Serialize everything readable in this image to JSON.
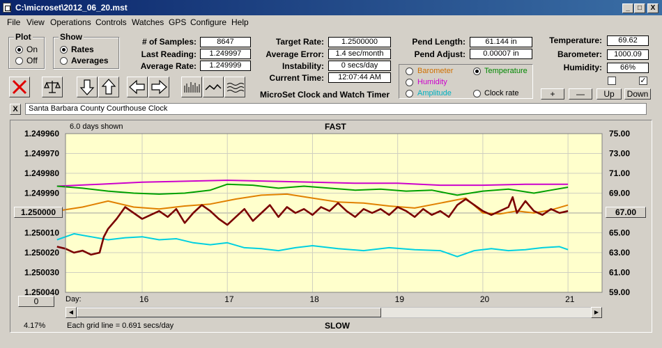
{
  "window": {
    "title": "C:\\microset\\2012_06_20.mst",
    "min": "_",
    "max": "□",
    "close": "X"
  },
  "menu": [
    "File",
    "View",
    "Operations",
    "Controls",
    "Watches",
    "GPS",
    "Configure",
    "Help"
  ],
  "plot_group": {
    "label": "Plot",
    "on": "On",
    "off": "Off"
  },
  "show_group": {
    "label": "Show",
    "rates": "Rates",
    "averages": "Averages"
  },
  "stats": {
    "samples_label": "# of Samples:",
    "samples": "8647",
    "last_label": "Last Reading:",
    "last": "1.249997",
    "avg_label": "Average Rate:",
    "avg": "1.249999",
    "target_label": "Target Rate:",
    "target": "1.2500000",
    "avgerr_label": "Average Error:",
    "avgerr": "1.4 sec/month",
    "instab_label": "Instability:",
    "instab": "0 secs/day",
    "time_label": "Current Time:",
    "time": "12:07:44 AM",
    "plen_label": "Pend Length:",
    "plen": "61.144 in",
    "padj_label": "Pend Adjust:",
    "padj": "0.00007 in",
    "temp_label": "Temperature:",
    "temp": "69.62",
    "baro_label": "Barometer:",
    "baro": "1000.09",
    "hum_label": "Humidity:",
    "hum": "66%"
  },
  "program_name": "MicroSet Clock and Watch Timer",
  "sensors": {
    "barometer": "Barometer",
    "temperature": "Temperature",
    "humidity": "Humidity",
    "amplitude": "Amplitude",
    "clock_rate": "Clock rate",
    "colors": {
      "barometer": "#d07000",
      "temperature": "#008800",
      "humidity": "#cc00cc",
      "amplitude": "#00b0c0",
      "clock_rate": "#000000"
    }
  },
  "right_buttons": {
    "plus": "+",
    "minus": "—",
    "up": "Up",
    "down": "Down"
  },
  "clock_name": "Santa Barbara County Courthouse Clock",
  "clock_close": "X",
  "graph": {
    "days_shown": "6.0 days shown",
    "fast": "FAST",
    "slow": "SLOW",
    "center_value": "1.250000",
    "right_center": "67.00",
    "left_bottom": "0",
    "percent": "4.17%",
    "grid_note": "Each grid line = 0.691 secs/day",
    "day_label": "Day:"
  },
  "chart_data": {
    "type": "line",
    "x_ticks": [
      "16",
      "17",
      "18",
      "19",
      "20",
      "21"
    ],
    "y_ticks_left": [
      "1.249960",
      "1.249970",
      "1.249980",
      "1.249990",
      "1.250000",
      "1.250010",
      "1.250020",
      "1.250030",
      "1.250040"
    ],
    "y_ticks_right": [
      "75.00",
      "73.00",
      "71.00",
      "69.00",
      "67.00",
      "65.00",
      "63.00",
      "61.00",
      "59.00"
    ],
    "xlim": [
      15.1,
      21.4
    ],
    "ylim_left": [
      1.24996,
      1.25004
    ],
    "ylim_right": [
      59,
      75
    ],
    "series": [
      {
        "name": "Humidity",
        "color": "#cc00cc",
        "width": 2,
        "x": [
          15.0,
          15.5,
          16.0,
          16.5,
          17.0,
          17.5,
          18.0,
          18.5,
          19.0,
          19.5,
          20.0,
          20.5,
          21.0
        ],
        "y": [
          69.7,
          69.9,
          70.1,
          70.2,
          70.3,
          70.2,
          70.1,
          70.0,
          70.0,
          69.8,
          69.8,
          69.9,
          69.9
        ]
      },
      {
        "name": "Temperature",
        "color": "#00a000",
        "width": 2,
        "x": [
          15.0,
          15.3,
          15.6,
          15.9,
          16.2,
          16.5,
          16.8,
          17.0,
          17.3,
          17.6,
          17.9,
          18.2,
          18.5,
          18.8,
          19.1,
          19.4,
          19.7,
          20.0,
          20.3,
          20.6,
          20.8,
          21.0
        ],
        "y": [
          69.7,
          69.5,
          69.2,
          69.0,
          68.9,
          69.0,
          69.3,
          69.9,
          69.8,
          69.5,
          69.7,
          69.5,
          69.3,
          69.4,
          69.2,
          69.3,
          68.8,
          69.2,
          69.4,
          69.0,
          69.3,
          69.6
        ]
      },
      {
        "name": "Barometer",
        "color": "#e08000",
        "width": 2,
        "x": [
          15.0,
          15.3,
          15.6,
          15.9,
          16.2,
          16.5,
          16.8,
          17.1,
          17.4,
          17.7,
          18.0,
          18.3,
          18.6,
          18.9,
          19.2,
          19.5,
          19.8,
          20.0,
          20.2,
          20.4,
          20.6,
          20.8,
          21.0
        ],
        "y": [
          67.2,
          67.6,
          68.2,
          67.6,
          67.4,
          67.7,
          67.9,
          68.4,
          68.8,
          68.9,
          68.5,
          68.1,
          68.0,
          67.7,
          67.5,
          68.0,
          68.5,
          67.0,
          66.9,
          67.2,
          67.0,
          67.3,
          67.8
        ]
      },
      {
        "name": "Amplitude",
        "color": "#00d0e0",
        "width": 2,
        "x": [
          15.0,
          15.2,
          15.4,
          15.6,
          15.8,
          16.0,
          16.2,
          16.4,
          16.6,
          16.8,
          17.0,
          17.2,
          17.4,
          17.6,
          17.8,
          18.0,
          18.3,
          18.6,
          18.9,
          19.2,
          19.5,
          19.7,
          19.9,
          20.1,
          20.3,
          20.5,
          20.7,
          20.9,
          21.0
        ],
        "y": [
          64.3,
          64.9,
          64.6,
          64.3,
          64.5,
          64.6,
          64.3,
          64.4,
          64.0,
          63.8,
          64.0,
          63.5,
          63.4,
          63.2,
          63.5,
          63.7,
          63.4,
          63.2,
          63.5,
          63.3,
          63.2,
          62.6,
          63.2,
          63.4,
          63.2,
          63.3,
          63.5,
          63.6,
          63.3
        ]
      },
      {
        "name": "Clock rate",
        "color": "#7a0000",
        "width": 2.6,
        "x": [
          15.0,
          15.1,
          15.2,
          15.3,
          15.4,
          15.5,
          15.55,
          15.6,
          15.7,
          15.8,
          15.9,
          16.0,
          16.1,
          16.2,
          16.3,
          16.4,
          16.5,
          16.6,
          16.7,
          16.8,
          16.9,
          17.0,
          17.1,
          17.2,
          17.3,
          17.4,
          17.5,
          17.6,
          17.7,
          17.8,
          17.9,
          18.0,
          18.1,
          18.2,
          18.3,
          18.4,
          18.5,
          18.6,
          18.7,
          18.8,
          18.9,
          19.0,
          19.1,
          19.2,
          19.3,
          19.4,
          19.5,
          19.6,
          19.7,
          19.8,
          19.9,
          20.0,
          20.1,
          20.2,
          20.3,
          20.35,
          20.4,
          20.5,
          20.6,
          20.7,
          20.8,
          20.9,
          21.0
        ],
        "y": [
          1.250017,
          1.250018,
          1.25002,
          1.250019,
          1.250021,
          1.25002,
          1.250012,
          1.250008,
          1.250003,
          1.249997,
          1.25,
          1.250003,
          1.250001,
          1.249999,
          1.250002,
          1.249998,
          1.250005,
          1.25,
          1.249996,
          1.249999,
          1.250003,
          1.250006,
          1.250002,
          1.249998,
          1.250004,
          1.25,
          1.249996,
          1.250002,
          1.249997,
          1.25,
          1.249998,
          1.250001,
          1.249997,
          1.249999,
          1.249995,
          1.249999,
          1.250002,
          1.249998,
          1.25,
          1.249998,
          1.250001,
          1.249997,
          1.249999,
          1.250002,
          1.249998,
          1.250001,
          1.249999,
          1.250002,
          1.249996,
          1.249993,
          1.249996,
          1.249999,
          1.250001,
          1.249999,
          1.249997,
          1.249992,
          1.25,
          1.249994,
          1.249999,
          1.250001,
          1.249998,
          1.25,
          1.249999
        ]
      }
    ]
  }
}
